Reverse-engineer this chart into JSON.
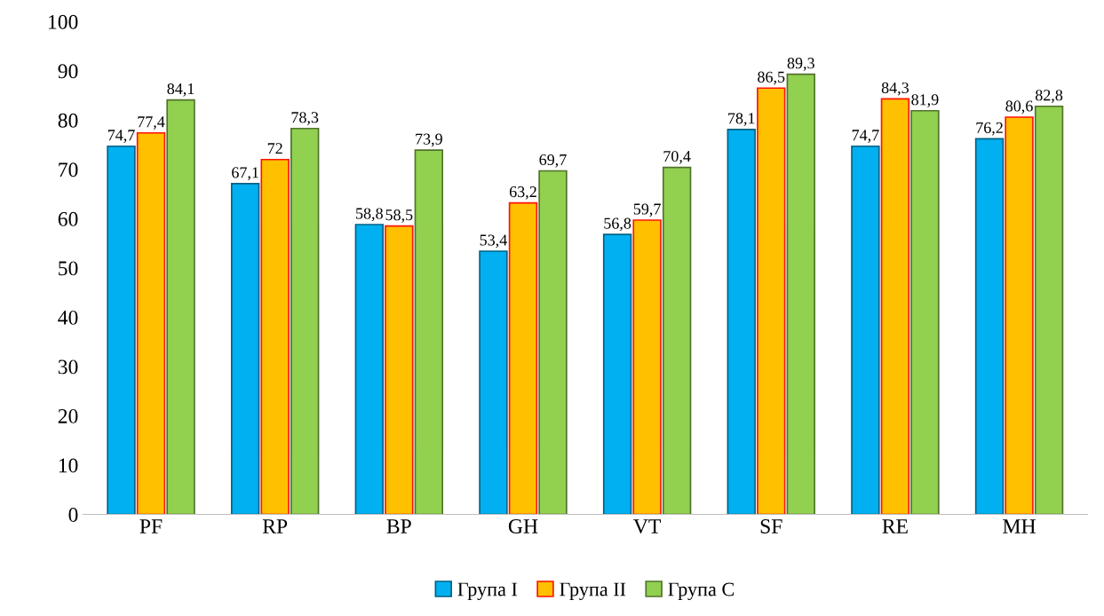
{
  "chart_data": {
    "type": "bar",
    "categories": [
      "PF",
      "RP",
      "BP",
      "GH",
      "VT",
      "SF",
      "RE",
      "MH"
    ],
    "series": [
      {
        "name": "Група I",
        "color": "#00b0f0",
        "values": [
          74.7,
          67.1,
          58.8,
          53.4,
          56.8,
          78.1,
          74.7,
          76.2
        ],
        "value_labels": [
          "74,7",
          "67,1",
          "58,8",
          "53,4",
          "56,8",
          "78,1",
          "74,7",
          "76,2"
        ]
      },
      {
        "name": "Група II",
        "color": "#ffc000",
        "values": [
          77.4,
          72,
          58.5,
          63.2,
          59.7,
          86.5,
          84.3,
          80.6
        ],
        "value_labels": [
          "77,4",
          "72",
          "58,5",
          "63,2",
          "59,7",
          "86,5",
          "84,3",
          "80,6"
        ]
      },
      {
        "name": "Група C",
        "color": "#92d050",
        "values": [
          84.1,
          78.3,
          73.9,
          69.7,
          70.4,
          89.3,
          81.9,
          82.8
        ],
        "value_labels": [
          "84,1",
          "78,3",
          "73,9",
          "69,7",
          "70,4",
          "89,3",
          "81,9",
          "82,8"
        ]
      }
    ],
    "ylim": [
      0,
      100
    ],
    "yticks": [
      0,
      10,
      20,
      30,
      40,
      50,
      60,
      70,
      80,
      90,
      100
    ],
    "grid": false,
    "legend": "bottom"
  }
}
